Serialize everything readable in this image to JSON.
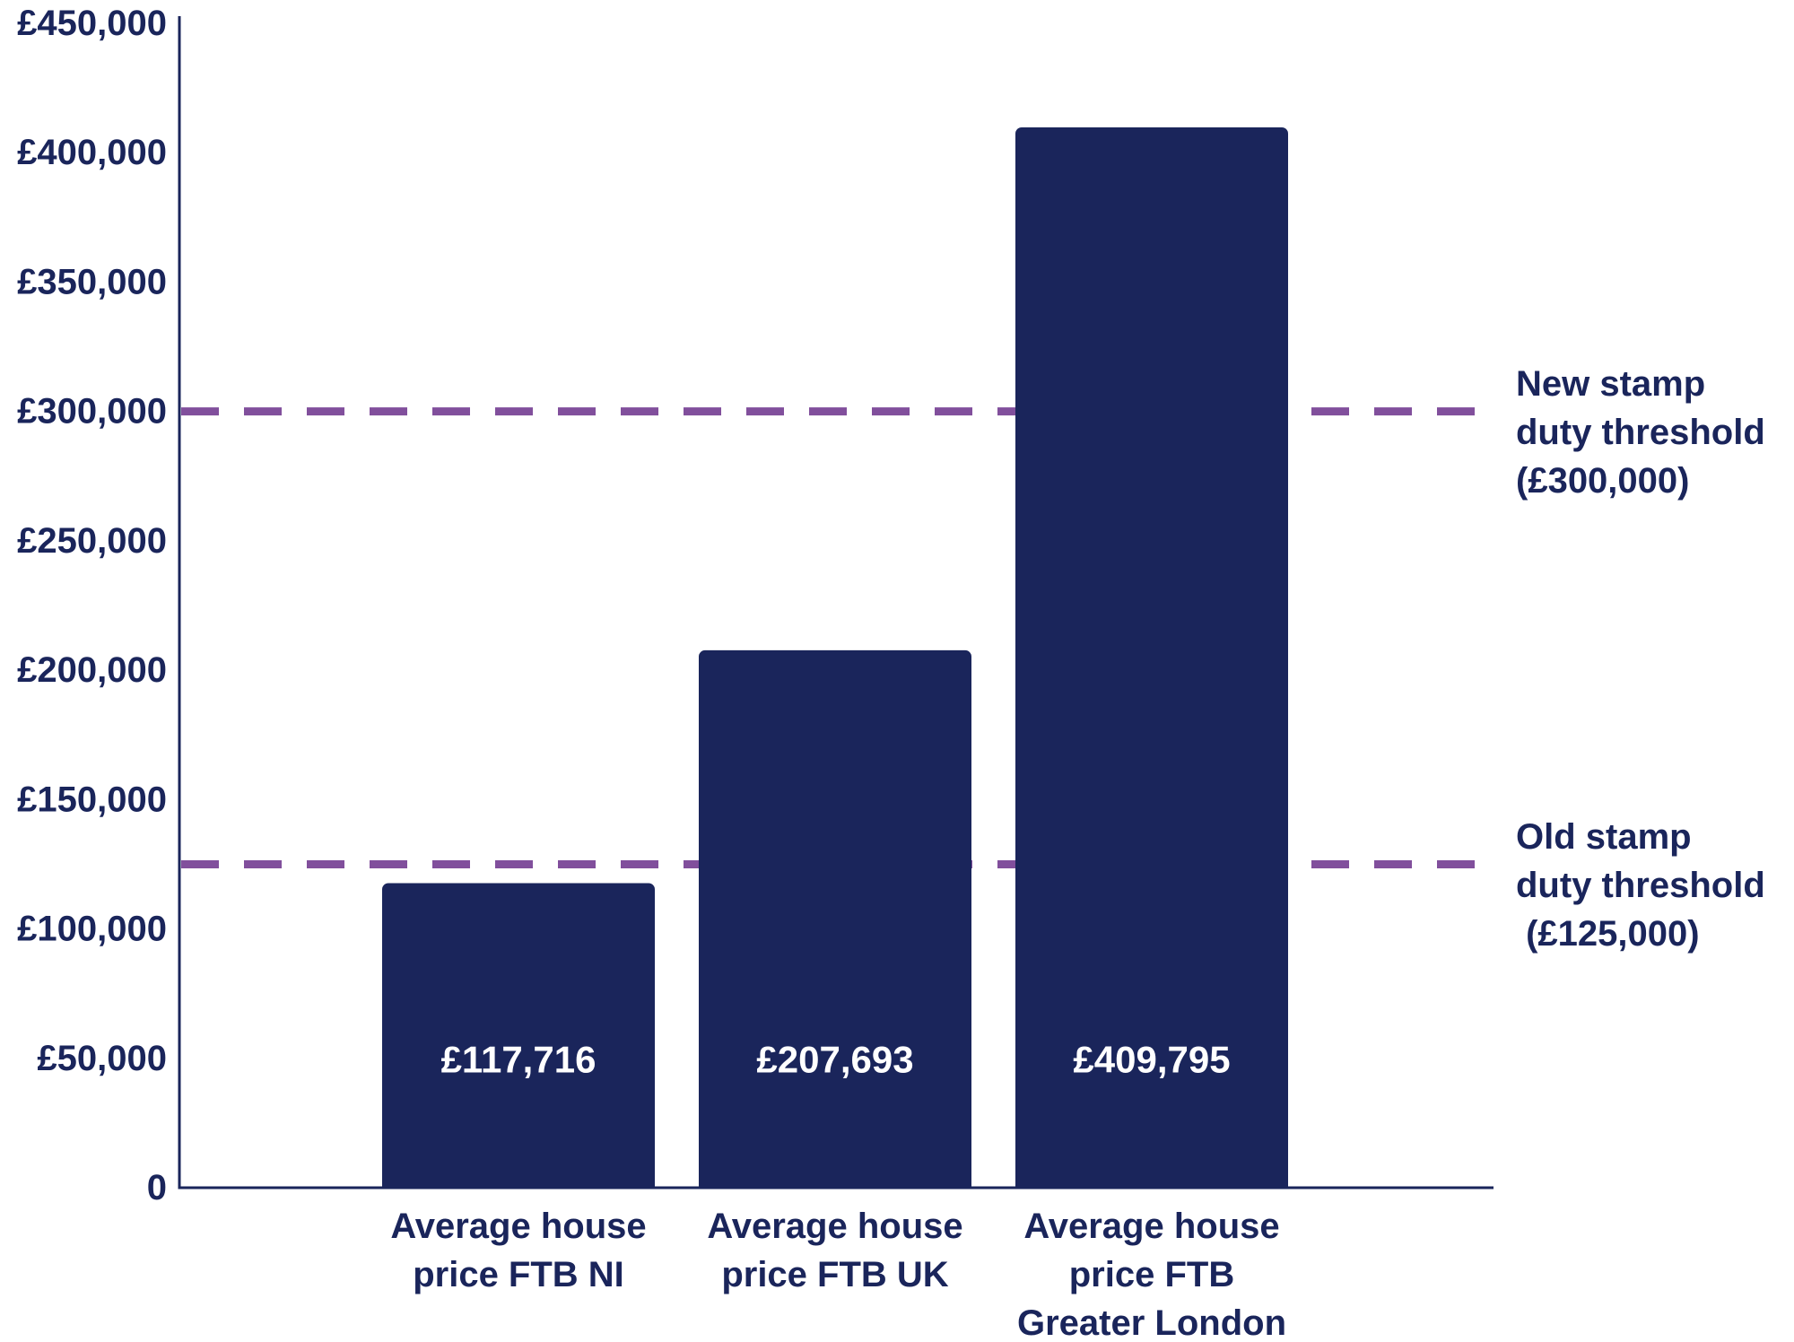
{
  "chart_data": {
    "type": "bar",
    "title": "",
    "xlabel": "",
    "ylabel": "",
    "ylim": [
      0,
      450000
    ],
    "y_ticks": [
      0,
      50000,
      100000,
      150000,
      200000,
      250000,
      300000,
      350000,
      400000,
      450000
    ],
    "y_tick_labels": [
      "0",
      "£50,000",
      "£100,000",
      "£150,000",
      "£200,000",
      "£250,000",
      "£300,000",
      "£350,000",
      "£400,000",
      "£450,000"
    ],
    "grid": false,
    "legend": "none",
    "categories": [
      [
        "Average house",
        "price FTB NI"
      ],
      [
        "Average house",
        "price FTB UK"
      ],
      [
        "Average house",
        "price FTB",
        "Greater London"
      ]
    ],
    "values": [
      117716,
      207693,
      409795
    ],
    "data_labels": [
      "£117,716",
      "£207,693",
      "£409,795"
    ],
    "reference_lines": [
      {
        "value": 300000,
        "label": [
          "New stamp",
          "duty threshold",
          "(£300,000)"
        ]
      },
      {
        "value": 125000,
        "label": [
          "Old stamp",
          "duty threshold",
          " (£125,000)"
        ]
      }
    ],
    "colors": {
      "bar": "#1a255b",
      "axis": "#1a255b",
      "text": "#1a255b",
      "bar_label": "#ffffff",
      "reference_line": "#814f9c"
    }
  }
}
